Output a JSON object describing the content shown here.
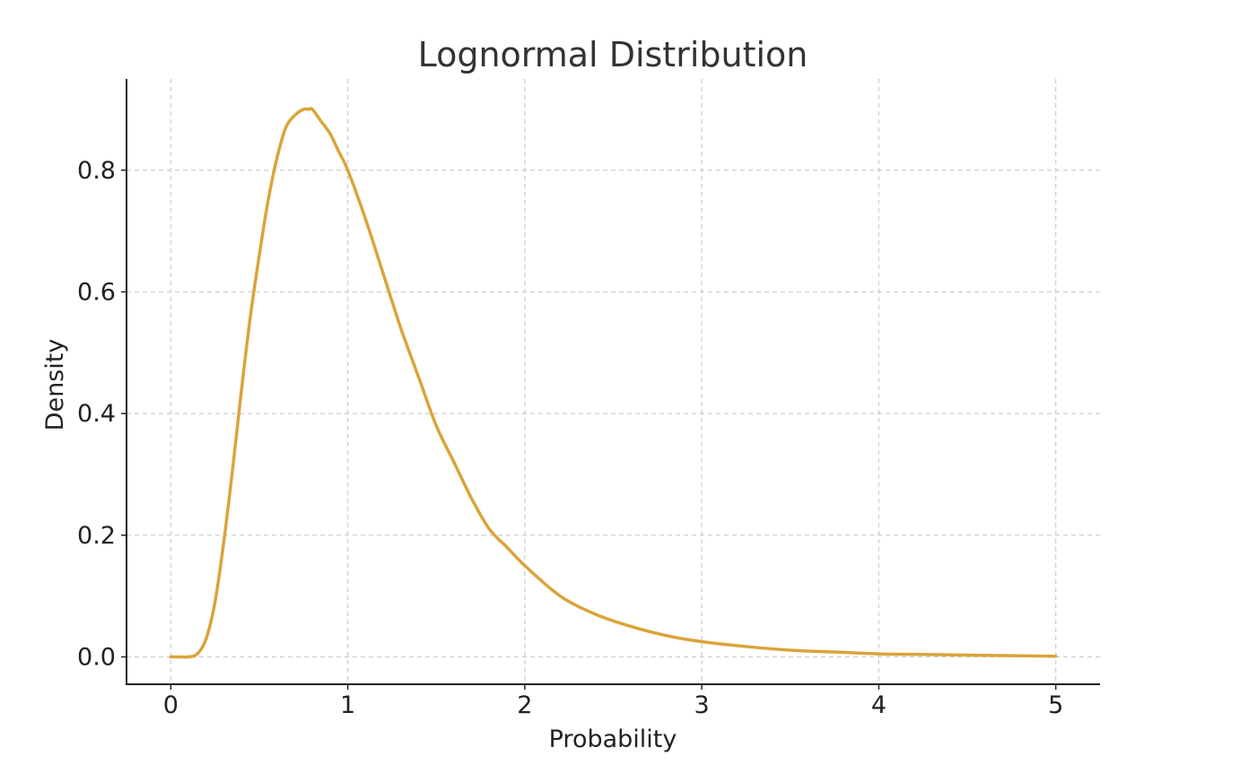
{
  "chart_data": {
    "type": "line",
    "title": "Lognormal Distribution",
    "xlabel": "Probability",
    "ylabel": "Density",
    "xlim": [
      -0.25,
      5.25
    ],
    "ylim": [
      -0.045,
      0.95
    ],
    "xticks": [
      0,
      1,
      2,
      3,
      4,
      5
    ],
    "xtick_labels": [
      "0",
      "1",
      "2",
      "3",
      "4",
      "5"
    ],
    "yticks": [
      0.0,
      0.2,
      0.4,
      0.6,
      0.8
    ],
    "ytick_labels": [
      "0.0",
      "0.2",
      "0.4",
      "0.6",
      "0.8"
    ],
    "grid": true,
    "legend": "none",
    "series": [
      {
        "color": "#DAA43A",
        "x": [
          0,
          0.05,
          0.1,
          0.15,
          0.2,
          0.25,
          0.3,
          0.35,
          0.4,
          0.45,
          0.5,
          0.55,
          0.6,
          0.65,
          0.7,
          0.75,
          0.78,
          0.8,
          0.85,
          0.9,
          0.95,
          1.0,
          1.1,
          1.2,
          1.3,
          1.4,
          1.5,
          1.6,
          1.7,
          1.8,
          1.9,
          2.0,
          2.2,
          2.4,
          2.6,
          2.8,
          3.0,
          3.25,
          3.5,
          3.75,
          4.0,
          4.25,
          4.5,
          4.75,
          5.0
        ],
        "y": [
          0.0,
          0.0,
          0.0,
          0.005,
          0.03,
          0.09,
          0.19,
          0.31,
          0.44,
          0.56,
          0.66,
          0.75,
          0.82,
          0.87,
          0.89,
          0.9,
          0.9,
          0.9,
          0.88,
          0.86,
          0.83,
          0.8,
          0.72,
          0.63,
          0.54,
          0.46,
          0.38,
          0.32,
          0.26,
          0.21,
          0.18,
          0.15,
          0.1,
          0.07,
          0.05,
          0.035,
          0.025,
          0.017,
          0.011,
          0.008,
          0.005,
          0.004,
          0.003,
          0.002,
          0.001
        ]
      }
    ]
  }
}
